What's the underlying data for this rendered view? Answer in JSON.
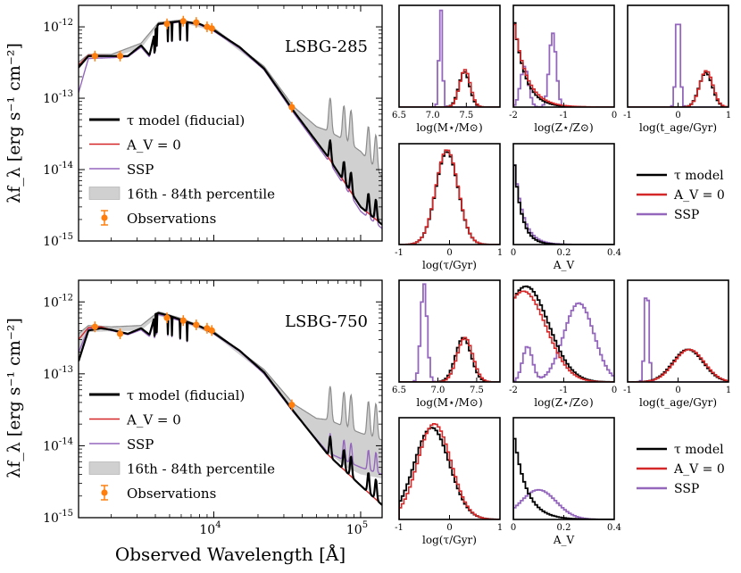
{
  "figure": {
    "xlabel": "Observed Wavelength [Å]",
    "ylabel": "λf_λ [erg s⁻¹ cm⁻²]"
  },
  "colors": {
    "tau": "#000000",
    "av0": "#d62728",
    "ssp": "#9467bd",
    "band": "#d0d0d0",
    "bandEdge": "#8c8c8c",
    "obs": "#ff7f0e"
  },
  "chart_data": [
    {
      "type": "line",
      "title": "LSBG-285",
      "xscale": "log",
      "yscale": "log",
      "xlim": [
        1200,
        140000
      ],
      "ylim": [
        1e-15,
        2e-12
      ],
      "xticks": [
        "10^4",
        "10^5"
      ],
      "yticks": [
        "10^-15",
        "10^-14",
        "10^-13",
        "10^-12"
      ],
      "legend": [
        "τ model (fiducial)",
        "A_V = 0",
        "SSP",
        "16th - 84th percentile",
        "Observations"
      ],
      "observations": {
        "wavelength": [
          1550,
          2300,
          4800,
          6200,
          7600,
          9000,
          9700,
          34000
        ],
        "flux": [
          3.9e-13,
          3.9e-13,
          1.1e-12,
          1.2e-12,
          1.15e-12,
          1e-12,
          9.5e-13,
          7.5e-14
        ]
      },
      "series": [
        {
          "name": "τ model (fiducial)",
          "wavelength": [
            1200,
            1400,
            2000,
            2600,
            3200,
            3650,
            4000,
            4200,
            5000,
            6000,
            8000,
            10000,
            15000,
            22000,
            35000,
            60000,
            100000,
            140000
          ],
          "flux": [
            2.7e-13,
            3.9e-13,
            3.9e-13,
            3.9e-13,
            5.5e-13,
            4e-13,
            9e-13,
            1.1e-12,
            1.15e-12,
            1.2e-12,
            1.1e-12,
            9e-13,
            5.2e-13,
            2.6e-13,
            6.6e-14,
            1.5e-14,
            3e-15,
            1.7e-15
          ]
        },
        {
          "name": "A_V = 0",
          "wavelength": [
            1200,
            1400,
            2000,
            2600,
            3200,
            3650,
            4000,
            4200,
            5000,
            6000,
            8000,
            10000,
            15000,
            22000,
            35000,
            60000,
            100000,
            140000
          ],
          "flux": [
            2.9e-13,
            4e-13,
            3.9e-13,
            3.9e-13,
            5.5e-13,
            4e-13,
            9e-13,
            1.1e-12,
            1.15e-12,
            1.2e-12,
            1.1e-12,
            9e-13,
            5.2e-13,
            2.6e-13,
            6.6e-14,
            1.5e-14,
            3e-15,
            1.7e-15
          ]
        },
        {
          "name": "SSP",
          "wavelength": [
            1200,
            1400,
            2000,
            2600,
            3200,
            3650,
            4000,
            4200,
            5000,
            6000,
            8000,
            10000,
            15000,
            22000,
            35000,
            60000,
            100000,
            140000
          ],
          "flux": [
            1.2e-13,
            3.6e-13,
            3.7e-13,
            3.8e-13,
            5.2e-13,
            3.8e-13,
            8.8e-13,
            1.08e-12,
            1.12e-12,
            1.18e-12,
            1.07e-12,
            8.7e-13,
            5e-13,
            2.5e-13,
            6.2e-14,
            1.35e-14,
            2.6e-15,
            1.5e-15
          ]
        }
      ],
      "band": {
        "wavelength": [
          1200,
          1400,
          2000,
          3200,
          4200,
          6000,
          10000,
          22000,
          35000,
          50000,
          60000,
          80000,
          100000,
          140000
        ],
        "low": [
          2.6e-13,
          3.7e-13,
          3.7e-13,
          5e-13,
          1.05e-12,
          1.15e-12,
          8.7e-13,
          2.5e-13,
          6.2e-14,
          2.3e-14,
          1.5e-14,
          6e-15,
          3e-15,
          1.8e-15
        ],
        "high": [
          3.2e-13,
          4.1e-13,
          4.1e-13,
          5.9e-13,
          1.15e-12,
          1.25e-12,
          9.6e-13,
          2.8e-13,
          7.6e-14,
          4e-14,
          3.5e-14,
          2.5e-14,
          1.8e-14,
          8e-15
        ]
      },
      "pah_peaks_wavelength": [
        62000,
        77000,
        86000,
        113000,
        127000
      ]
    },
    {
      "type": "line",
      "title": "LSBG-750",
      "xscale": "log",
      "yscale": "log",
      "xlim": [
        1200,
        140000
      ],
      "ylim": [
        1e-15,
        2e-12
      ],
      "xticks": [
        "10^4",
        "10^5"
      ],
      "yticks": [
        "10^-15",
        "10^-14",
        "10^-13",
        "10^-12"
      ],
      "legend": [
        "τ model (fiducial)",
        "A_V = 0",
        "SSP",
        "16th - 84th percentile",
        "Observations"
      ],
      "observations": {
        "wavelength": [
          1550,
          2300,
          4800,
          6200,
          7600,
          9000,
          9700,
          34000
        ],
        "flux": [
          4.5e-13,
          3.6e-13,
          6e-13,
          5.5e-13,
          4.8e-13,
          4.3e-13,
          4e-13,
          3.7e-14
        ]
      },
      "series": [
        {
          "name": "τ model (fiducial)",
          "wavelength": [
            1200,
            1400,
            1700,
            2000,
            2600,
            3200,
            3650,
            4000,
            4200,
            5000,
            6000,
            8000,
            10000,
            15000,
            22000,
            35000,
            60000,
            100000,
            140000
          ],
          "flux": [
            1.5e-13,
            4e-13,
            4.3e-13,
            4.1e-13,
            3.6e-13,
            4.3e-13,
            3.5e-13,
            6.8e-13,
            7e-13,
            6.4e-13,
            5.6e-13,
            4.6e-13,
            3.7e-13,
            2.1e-13,
            1.05e-13,
            3e-14,
            7.5e-15,
            2.8e-15,
            1.5e-15
          ]
        },
        {
          "name": "A_V = 0",
          "wavelength": [
            1200,
            1400,
            1700,
            2000,
            2600,
            3200,
            3650,
            4000,
            4200,
            5000,
            6000,
            8000,
            10000,
            15000,
            22000,
            35000,
            60000,
            100000,
            140000
          ],
          "flux": [
            3e-13,
            4.4e-13,
            4.5e-13,
            4.1e-13,
            3.6e-13,
            4.3e-13,
            3.5e-13,
            6.8e-13,
            7e-13,
            6.4e-13,
            5.6e-13,
            4.6e-13,
            3.7e-13,
            2.1e-13,
            1.05e-13,
            3e-14,
            7.5e-15,
            2.8e-15,
            1.5e-15
          ]
        },
        {
          "name": "SSP",
          "wavelength": [
            1200,
            1400,
            1700,
            2000,
            2600,
            3200,
            3650,
            4000,
            4200,
            5000,
            6000,
            8000,
            10000,
            15000,
            22000,
            35000,
            60000,
            100000,
            140000
          ],
          "flux": [
            2e-13,
            4.2e-13,
            4.4e-13,
            4e-13,
            3.5e-13,
            4.1e-13,
            3.3e-13,
            6.4e-13,
            6.7e-13,
            6.1e-13,
            5.4e-13,
            4.5e-13,
            3.6e-13,
            2.05e-13,
            1e-13,
            2.9e-14,
            8e-15,
            5e-15,
            4e-15
          ]
        }
      ],
      "band": {
        "wavelength": [
          1200,
          1400,
          2000,
          3200,
          4200,
          6000,
          10000,
          22000,
          35000,
          50000,
          60000,
          80000,
          100000,
          140000
        ],
        "low": [
          1.6e-13,
          3.8e-13,
          3.9e-13,
          4e-13,
          6.4e-13,
          5.3e-13,
          3.5e-13,
          1e-13,
          2.8e-14,
          1.2e-14,
          8e-15,
          5e-15,
          4e-15,
          3.5e-15
        ],
        "high": [
          3.6e-13,
          4.7e-13,
          4.5e-13,
          4.7e-13,
          7.3e-13,
          5.9e-13,
          3.9e-13,
          1.15e-13,
          3.8e-14,
          2.4e-14,
          2.3e-14,
          1.8e-14,
          1.5e-14,
          1.2e-14
        ]
      },
      "pah_peaks_wavelength": [
        62000,
        77000,
        86000,
        113000,
        127000
      ]
    },
    {
      "type": "histogram",
      "title": "LSBG-285 log(M*/M☉)",
      "xlabel": "log(M⋆/M⊙)",
      "xlim": [
        6.5,
        8.0
      ],
      "xticks": [
        6.5,
        7.0,
        7.5
      ],
      "series": [
        {
          "name": "τ model",
          "peak": 7.47,
          "width": 0.08,
          "height": 0.36
        },
        {
          "name": "A_V = 0",
          "peak": 7.48,
          "width": 0.08,
          "height": 0.38
        },
        {
          "name": "SSP",
          "peak": 7.12,
          "width": 0.025,
          "height": 1.0
        }
      ]
    },
    {
      "type": "histogram",
      "title": "LSBG-285 log(Z*/Z☉)",
      "xlabel": "log(Z⋆/Z⊙)",
      "xlim": [
        -2,
        0
      ],
      "xticks": [
        -2,
        -1,
        0
      ],
      "series": [
        {
          "name": "τ model",
          "peak": -2.0,
          "decay": 0.22,
          "height": 0.95
        },
        {
          "name": "A_V = 0",
          "peak": -2.0,
          "decay": 0.25,
          "height": 0.92
        },
        {
          "name": "SSP",
          "peaks": [
            -1.78,
            -1.22
          ],
          "height": 0.75
        }
      ]
    },
    {
      "type": "histogram",
      "title": "LSBG-285 log(t_age/Gyr)",
      "xlabel": "log(t_age/Gyr)",
      "xlim": [
        -1,
        1
      ],
      "xticks": [
        -1,
        0,
        1
      ],
      "series": [
        {
          "name": "τ model",
          "peak": 0.55,
          "width": 0.13,
          "height": 0.35
        },
        {
          "name": "A_V = 0",
          "peak": 0.56,
          "width": 0.13,
          "height": 0.37
        },
        {
          "name": "SSP",
          "peak": 0.0,
          "width": 0.04,
          "height": 1.0
        }
      ]
    },
    {
      "type": "histogram",
      "title": "LSBG-285 log(τ/Gyr)",
      "xlabel": "log(τ/Gyr)",
      "xlim": [
        -1,
        1
      ],
      "xticks": [
        -1,
        0,
        1
      ],
      "series": [
        {
          "name": "τ model",
          "peak": -0.05,
          "width": 0.22,
          "height": 0.95
        },
        {
          "name": "A_V = 0",
          "peak": -0.05,
          "width": 0.22,
          "height": 0.97
        }
      ]
    },
    {
      "type": "histogram",
      "title": "LSBG-285 A_V",
      "xlabel": "A_V",
      "xlim": [
        0,
        0.4
      ],
      "xticks": [
        0.0,
        0.2,
        0.4
      ],
      "series": [
        {
          "name": "τ model",
          "peak": 0.0,
          "decay": 0.03,
          "height": 0.95
        },
        {
          "name": "SSP",
          "peak": 0.0,
          "decay": 0.035,
          "height": 0.93
        }
      ]
    },
    {
      "type": "histogram",
      "title": "LSBG-750 log(M*/M☉)",
      "xlabel": "log(M⋆/M⊙)",
      "xlim": [
        6.5,
        7.8
      ],
      "xticks": [
        6.5,
        7.0,
        7.5
      ],
      "series": [
        {
          "name": "τ model",
          "peak": 7.33,
          "width": 0.1,
          "height": 0.45
        },
        {
          "name": "A_V = 0",
          "peak": 7.35,
          "width": 0.1,
          "height": 0.45
        },
        {
          "name": "SSP",
          "peak": 6.82,
          "width": 0.04,
          "height": 1.0
        }
      ]
    },
    {
      "type": "histogram",
      "title": "LSBG-750 log(Z*/Z☉)",
      "xlabel": "log(Z⋆/Z⊙)",
      "xlim": [
        -2,
        0
      ],
      "xticks": [
        -2,
        -1,
        0
      ],
      "series": [
        {
          "name": "τ model",
          "peak": -1.75,
          "width": 0.45,
          "height": 0.97
        },
        {
          "name": "A_V = 0",
          "peak": -1.8,
          "width": 0.45,
          "height": 0.92
        },
        {
          "name": "SSP",
          "peaks": [
            -1.72,
            -0.7
          ],
          "height": 0.8
        }
      ]
    },
    {
      "type": "histogram",
      "title": "LSBG-750 log(t_age/Gyr)",
      "xlabel": "log(t_age/Gyr)",
      "xlim": [
        -1,
        1
      ],
      "xticks": [
        -1,
        0,
        1
      ],
      "series": [
        {
          "name": "τ model",
          "peak": 0.2,
          "width": 0.3,
          "height": 0.33
        },
        {
          "name": "A_V = 0",
          "peak": 0.22,
          "width": 0.3,
          "height": 0.33
        },
        {
          "name": "SSP",
          "peak": -0.62,
          "width": 0.04,
          "height": 1.0
        }
      ]
    },
    {
      "type": "histogram",
      "title": "LSBG-750 log(τ/Gyr)",
      "xlabel": "log(τ/Gyr)",
      "xlim": [
        -1,
        1
      ],
      "xticks": [
        -1,
        0,
        1
      ],
      "series": [
        {
          "name": "τ model",
          "peak": -0.35,
          "width": 0.35,
          "height": 0.93
        },
        {
          "name": "A_V = 0",
          "peak": -0.3,
          "width": 0.33,
          "height": 0.97
        }
      ]
    },
    {
      "type": "histogram",
      "title": "LSBG-750 A_V",
      "xlabel": "A_V",
      "xlim": [
        0,
        0.4
      ],
      "xticks": [
        0.0,
        0.2,
        0.4
      ],
      "series": [
        {
          "name": "τ model",
          "peak": 0.0,
          "decay": 0.05,
          "height": 0.9
        },
        {
          "name": "SSP",
          "peak": 0.1,
          "width": 0.07,
          "height": 0.3
        }
      ]
    }
  ],
  "small_legend": [
    "τ model",
    "A_V = 0",
    "SSP"
  ]
}
